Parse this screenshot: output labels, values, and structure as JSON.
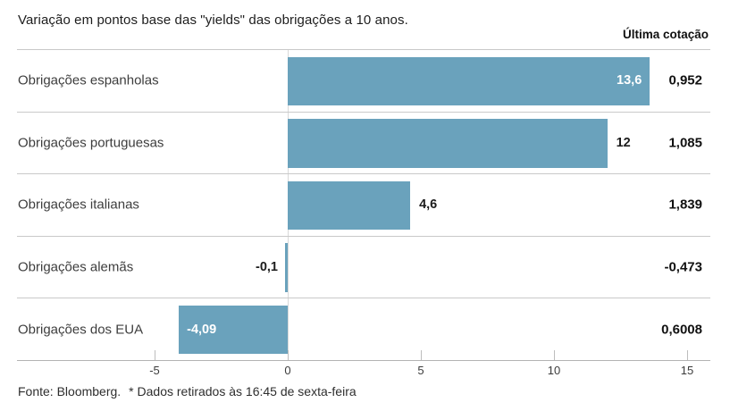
{
  "header": {
    "title": "Variação em pontos base das \"yields\" das obrigações a 10 anos.",
    "right_column_label": "Última cotação"
  },
  "footer": {
    "source": "Fonte: Bloomberg.",
    "note": "* Dados retirados às 16:45 de sexta-feira"
  },
  "colors": {
    "bar": "#6aa2bc",
    "separator": "#c9c9c9",
    "zero_line": "#d9d9d9",
    "axis": "#b3b3b3",
    "value_label_on_bar": "#ffffff",
    "value_label_outside": "#1c1c1c"
  },
  "chart_data": {
    "type": "bar",
    "orientation": "horizontal",
    "title": "Variação em pontos base das \"yields\" das obrigações a 10 anos.",
    "categories": [
      "Obrigações espanholas",
      "Obrigações portuguesas",
      "Obrigações italianas",
      "Obrigações alemãs",
      "Obrigações dos EUA"
    ],
    "values": [
      13.6,
      12,
      4.6,
      -0.1,
      -4.09
    ],
    "value_labels": [
      "13,6",
      "12",
      "4,6",
      "-0,1",
      "-4,09"
    ],
    "label_positions": [
      "inside-end",
      "outside-end",
      "outside-end",
      "outside-start",
      "inside-start"
    ],
    "last_quote_column_label": "Última cotação",
    "last_quotes": [
      "0,952",
      "1,085",
      "1,839",
      "-0,473",
      "0,6008"
    ],
    "x_ticks": [
      -5,
      0,
      5,
      10,
      15
    ],
    "x_tick_labels": [
      "-5",
      "0",
      "5",
      "10",
      "15"
    ],
    "xlim": [
      -10.2,
      15.9
    ],
    "grid": "zero-line-only",
    "legend": "none",
    "source": "Fonte: Bloomberg.",
    "note": "* Dados retirados às 16:45 de sexta-feira"
  }
}
